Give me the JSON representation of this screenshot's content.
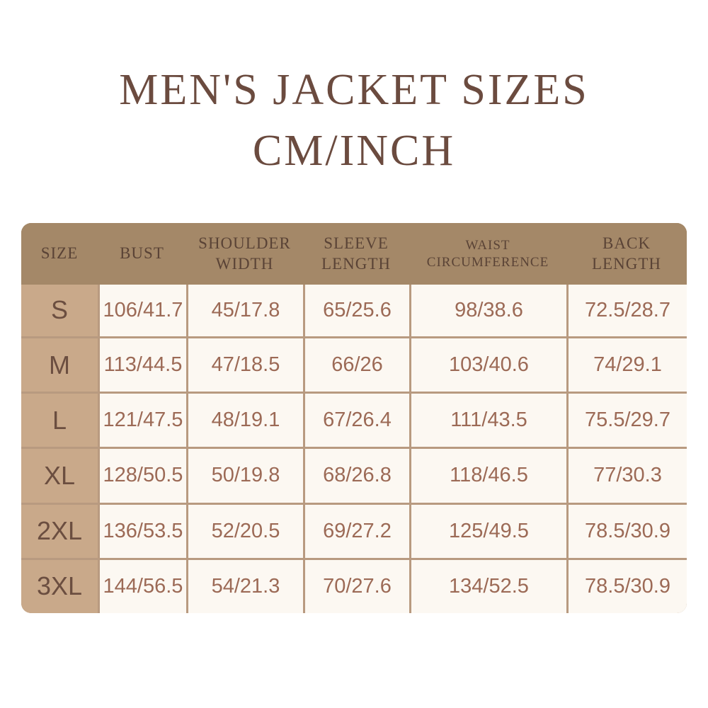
{
  "title": {
    "line1": "MEN'S JACKET SIZES",
    "line2": "CM/INCH"
  },
  "colors": {
    "header": "#a48868",
    "size_column": "#c9a98a",
    "cell": "#fcf8f2",
    "text": "#9c6a56",
    "title": "#6b4b3f"
  },
  "table": {
    "headers": [
      [
        "SIZE"
      ],
      [
        "BUST"
      ],
      [
        "SHOULDER",
        "WIDTH"
      ],
      [
        "SLEEVE",
        "LENGTH"
      ],
      [
        "WAIST",
        "CIRCUMFERENCE"
      ],
      [
        "BACK",
        "LENGTH"
      ]
    ],
    "rows": [
      [
        "S",
        "106/41.7",
        "45/17.8",
        "65/25.6",
        "98/38.6",
        "72.5/28.7"
      ],
      [
        "M",
        "113/44.5",
        "47/18.5",
        "66/26",
        "103/40.6",
        "74/29.1"
      ],
      [
        "L",
        "121/47.5",
        "48/19.1",
        "67/26.4",
        "111/43.5",
        "75.5/29.7"
      ],
      [
        "XL",
        "128/50.5",
        "50/19.8",
        "68/26.8",
        "118/46.5",
        "77/30.3"
      ],
      [
        "2XL",
        "136/53.5",
        "52/20.5",
        "69/27.2",
        "125/49.5",
        "78.5/30.9"
      ],
      [
        "3XL",
        "144/56.5",
        "54/21.3",
        "70/27.6",
        "134/52.5",
        "78.5/30.9"
      ]
    ]
  }
}
